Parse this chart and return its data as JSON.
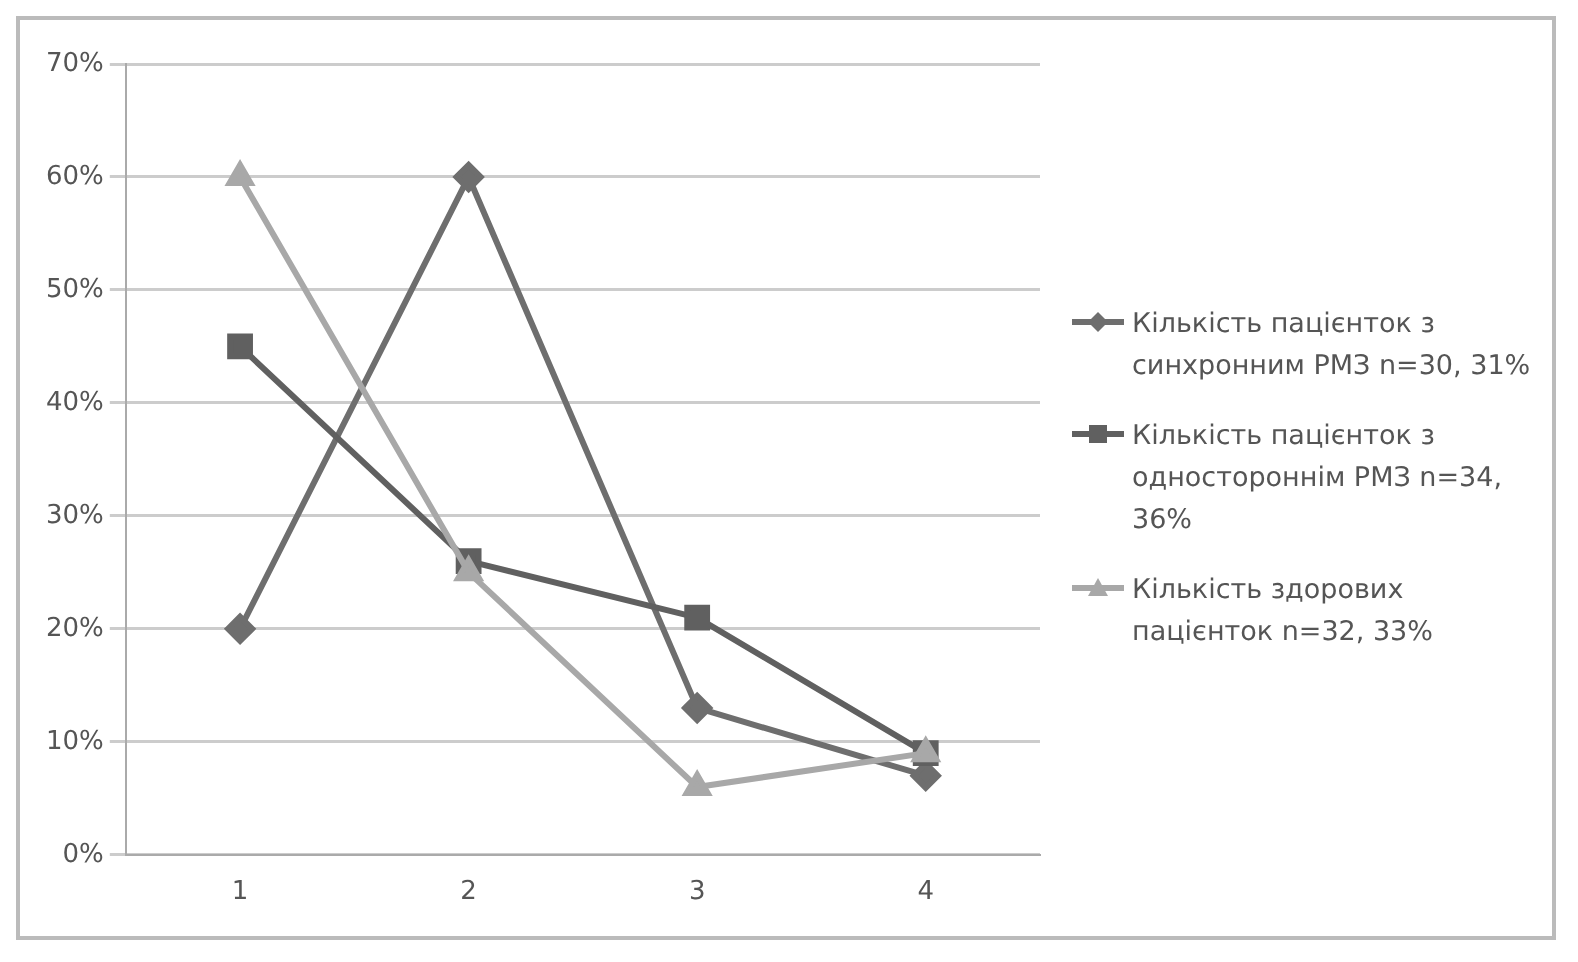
{
  "chart_data": {
    "type": "line",
    "categories": [
      "1",
      "2",
      "3",
      "4"
    ],
    "series": [
      {
        "name": "Кількість пацієнток з синхронним РМЗ n=30, 31%",
        "color": "#6e6e6e",
        "marker": "diamond",
        "values": [
          20,
          60,
          13,
          7
        ]
      },
      {
        "name": "Кількість пацієнток з одностороннім РМЗ n=34, 36%",
        "color": "#606060",
        "marker": "square",
        "values": [
          45,
          26,
          21,
          9
        ]
      },
      {
        "name": "Кількість здорових пацієнток n=32, 33%",
        "color": "#a8a8a8",
        "marker": "triangle",
        "values": [
          60,
          25,
          6,
          9
        ]
      }
    ],
    "ylim": [
      0,
      70
    ],
    "yticks": [
      {
        "value": 0,
        "label": "0%"
      },
      {
        "value": 10,
        "label": "10%"
      },
      {
        "value": 20,
        "label": "20%"
      },
      {
        "value": 30,
        "label": "30%"
      },
      {
        "value": 40,
        "label": "40%"
      },
      {
        "value": 50,
        "label": "50%"
      },
      {
        "value": 60,
        "label": "60%"
      },
      {
        "value": 70,
        "label": "70%"
      }
    ],
    "grid": "y",
    "legend": "right"
  }
}
